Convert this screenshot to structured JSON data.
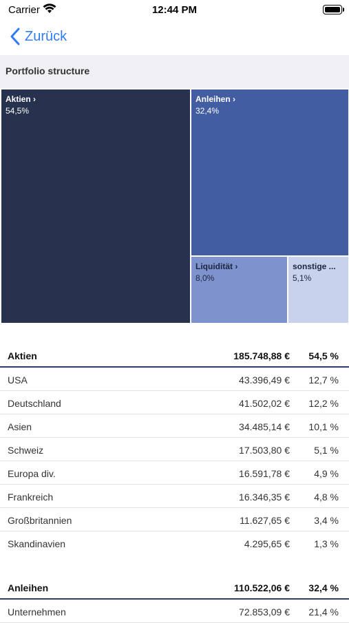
{
  "status_bar": {
    "carrier": "Carrier",
    "time": "12:44 PM"
  },
  "nav": {
    "back_label": "Zurück"
  },
  "section": {
    "title": "Portfolio structure"
  },
  "treemap": {
    "tiles": [
      {
        "name": "Aktien ›",
        "value": "54,5%",
        "color": "#27324f"
      },
      {
        "name": "Anleihen ›",
        "value": "32,4%",
        "color": "#425da1"
      },
      {
        "name": "Liquidität ›",
        "value": "8,0%",
        "color": "#7e93cd"
      },
      {
        "name": "sonstige ...",
        "value": "5,1%",
        "color": "#c9d2ec"
      }
    ]
  },
  "groups": [
    {
      "name": "Aktien",
      "amount": "185.748,88 €",
      "pct": "54,5 %",
      "rows": [
        {
          "name": "USA",
          "amount": "43.396,49 €",
          "pct": "12,7 %"
        },
        {
          "name": "Deutschland",
          "amount": "41.502,02 €",
          "pct": "12,2 %"
        },
        {
          "name": "Asien",
          "amount": "34.485,14 €",
          "pct": "10,1 %"
        },
        {
          "name": "Schweiz",
          "amount": "17.503,80 €",
          "pct": "5,1 %"
        },
        {
          "name": "Europa div.",
          "amount": "16.591,78 €",
          "pct": "4,9 %"
        },
        {
          "name": "Frankreich",
          "amount": "16.346,35 €",
          "pct": "4,8 %"
        },
        {
          "name": "Großbritannien",
          "amount": "11.627,65 €",
          "pct": "3,4 %"
        },
        {
          "name": "Skandinavien",
          "amount": "4.295,65 €",
          "pct": "1,3 %"
        }
      ]
    },
    {
      "name": "Anleihen",
      "amount": "110.522,06 €",
      "pct": "32,4 %",
      "rows": [
        {
          "name": "Unternehmen",
          "amount": "72.853,09 €",
          "pct": "21,4 %"
        }
      ]
    }
  ]
}
